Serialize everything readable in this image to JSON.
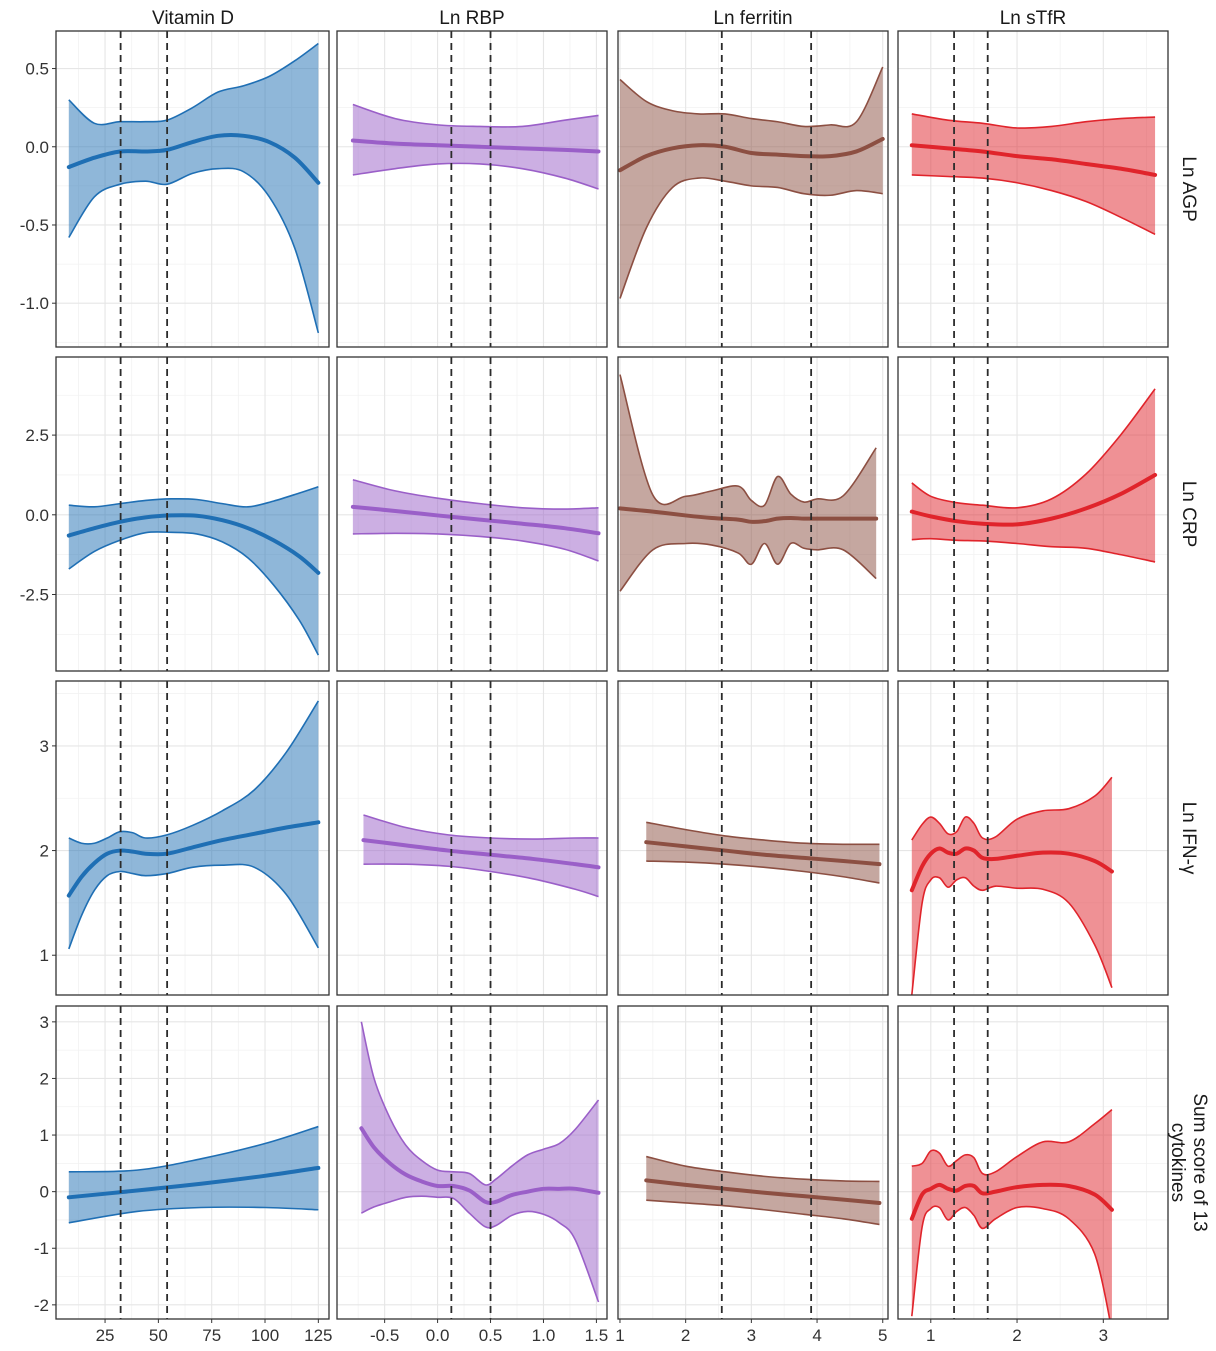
{
  "chart_data": {
    "type": "line",
    "columns": [
      {
        "strip": "Vitamin D",
        "color": "#1f6fb4",
        "xlim": [
          2,
          130
        ],
        "xticks": [
          25,
          50,
          75,
          100,
          125
        ],
        "xtick_labels": [
          "25",
          "50",
          "75",
          "100",
          "125"
        ],
        "vlines": [
          32.3,
          54.1
        ]
      },
      {
        "strip": "Ln RBP",
        "color": "#9a5fc8",
        "xlim": [
          -0.95,
          1.6
        ],
        "xticks": [
          -0.5,
          0.0,
          0.5,
          1.0,
          1.5
        ],
        "xtick_labels": [
          "-0.5",
          "0.0",
          "0.5",
          "1.0",
          "1.5"
        ],
        "vlines": [
          0.13,
          0.5
        ]
      },
      {
        "strip": "Ln ferritin",
        "color": "#8c4f42",
        "xlim": [
          0.97,
          5.08
        ],
        "xticks": [
          1,
          2,
          3,
          4,
          5
        ],
        "xtick_labels": [
          "1",
          "2",
          "3",
          "4",
          "5"
        ],
        "vlines": [
          2.55,
          3.91
        ]
      },
      {
        "strip": "Ln sTfR",
        "color": "#e0242b",
        "xlim": [
          0.62,
          3.75
        ],
        "xticks": [
          1,
          2,
          3
        ],
        "xtick_labels": [
          "1",
          "2",
          "3"
        ],
        "vlines": [
          1.27,
          1.66
        ]
      }
    ],
    "rows": [
      {
        "strip": [
          "Ln AGP"
        ],
        "ylim": [
          -1.28,
          0.74
        ],
        "yticks": [
          -1.0,
          -0.5,
          0.0,
          0.5
        ],
        "ytick_labels": [
          "-1.0",
          "-0.5",
          "0.0",
          "0.5"
        ],
        "panels": [
          {
            "x": [
              8,
              20,
              32,
              44,
              54,
              66,
              78,
              90,
              102,
              114,
              125
            ],
            "y": [
              -0.13,
              -0.07,
              -0.03,
              -0.03,
              -0.02,
              0.03,
              0.07,
              0.07,
              0.03,
              -0.07,
              -0.23
            ],
            "lo": [
              -0.58,
              -0.32,
              -0.24,
              -0.22,
              -0.24,
              -0.17,
              -0.14,
              -0.16,
              -0.32,
              -0.65,
              -1.19
            ],
            "hi": [
              0.3,
              0.15,
              0.16,
              0.16,
              0.17,
              0.25,
              0.35,
              0.39,
              0.45,
              0.55,
              0.66
            ]
          },
          {
            "x": [
              -0.8,
              -0.4,
              0.0,
              0.4,
              0.8,
              1.2,
              1.52
            ],
            "y": [
              0.04,
              0.02,
              0.01,
              0.0,
              -0.01,
              -0.02,
              -0.03
            ],
            "lo": [
              -0.18,
              -0.14,
              -0.11,
              -0.11,
              -0.14,
              -0.2,
              -0.27
            ],
            "hi": [
              0.27,
              0.18,
              0.14,
              0.13,
              0.13,
              0.17,
              0.2
            ],
            "ci_first": true
          },
          {
            "x": [
              1.0,
              1.4,
              1.8,
              2.2,
              2.6,
              3.0,
              3.4,
              3.8,
              4.2,
              4.6,
              5.0
            ],
            "y": [
              -0.15,
              -0.06,
              -0.01,
              0.01,
              0.0,
              -0.04,
              -0.05,
              -0.06,
              -0.06,
              -0.03,
              0.05
            ],
            "lo": [
              -0.97,
              -0.52,
              -0.26,
              -0.2,
              -0.22,
              -0.25,
              -0.26,
              -0.3,
              -0.31,
              -0.28,
              -0.3
            ],
            "hi": [
              0.43,
              0.29,
              0.23,
              0.21,
              0.21,
              0.18,
              0.16,
              0.13,
              0.14,
              0.16,
              0.51
            ]
          },
          {
            "x": [
              0.78,
              1.2,
              1.6,
              2.0,
              2.4,
              2.8,
              3.2,
              3.6
            ],
            "y": [
              0.01,
              -0.01,
              -0.03,
              -0.06,
              -0.08,
              -0.11,
              -0.14,
              -0.18
            ],
            "lo": [
              -0.18,
              -0.19,
              -0.2,
              -0.23,
              -0.28,
              -0.35,
              -0.45,
              -0.56
            ],
            "hi": [
              0.21,
              0.17,
              0.15,
              0.12,
              0.13,
              0.16,
              0.18,
              0.19
            ],
            "ci_first": true
          }
        ]
      },
      {
        "strip": [
          "Ln CRP"
        ],
        "ylim": [
          -4.9,
          4.95
        ],
        "yticks": [
          -2.5,
          0.0,
          2.5
        ],
        "ytick_labels": [
          "-2.5",
          "0.0",
          "2.5"
        ],
        "panels": [
          {
            "x": [
              8,
              20,
              32,
              44,
              56,
              68,
              80,
              92,
              104,
              116,
              125
            ],
            "y": [
              -0.65,
              -0.42,
              -0.22,
              -0.08,
              -0.02,
              -0.03,
              -0.17,
              -0.42,
              -0.8,
              -1.3,
              -1.82
            ],
            "lo": [
              -1.7,
              -1.15,
              -0.8,
              -0.56,
              -0.55,
              -0.6,
              -0.85,
              -1.35,
              -2.2,
              -3.3,
              -4.4
            ],
            "hi": [
              0.3,
              0.25,
              0.35,
              0.45,
              0.5,
              0.48,
              0.35,
              0.25,
              0.43,
              0.68,
              0.88
            ]
          },
          {
            "x": [
              -0.8,
              -0.4,
              0.0,
              0.4,
              0.8,
              1.2,
              1.52
            ],
            "y": [
              0.25,
              0.12,
              -0.02,
              -0.15,
              -0.28,
              -0.42,
              -0.58
            ],
            "lo": [
              -0.6,
              -0.58,
              -0.6,
              -0.68,
              -0.82,
              -1.08,
              -1.45
            ],
            "hi": [
              1.1,
              0.75,
              0.52,
              0.35,
              0.22,
              0.18,
              0.22
            ],
            "ci_first": true
          },
          {
            "x": [
              1.0,
              1.5,
              2.0,
              2.4,
              2.8,
              3.0,
              3.2,
              3.4,
              3.6,
              3.8,
              4.0,
              4.4,
              4.9
            ],
            "y": [
              0.2,
              0.1,
              -0.02,
              -0.1,
              -0.15,
              -0.22,
              -0.2,
              -0.12,
              -0.1,
              -0.12,
              -0.12,
              -0.12,
              -0.12
            ],
            "lo": [
              -2.4,
              -1.1,
              -0.9,
              -0.95,
              -1.2,
              -1.55,
              -0.9,
              -1.55,
              -0.9,
              -1.05,
              -1.1,
              -1.1,
              -2.0
            ],
            "hi": [
              4.4,
              0.62,
              0.58,
              0.75,
              0.9,
              0.45,
              0.3,
              1.2,
              0.65,
              0.4,
              0.5,
              0.6,
              2.1
            ]
          },
          {
            "x": [
              0.78,
              1.0,
              1.3,
              1.6,
              2.0,
              2.4,
              2.8,
              3.2,
              3.6
            ],
            "y": [
              0.1,
              -0.05,
              -0.2,
              -0.28,
              -0.3,
              -0.12,
              0.2,
              0.65,
              1.25
            ],
            "lo": [
              -0.78,
              -0.75,
              -0.8,
              -0.82,
              -0.9,
              -1.0,
              -1.05,
              -1.25,
              -1.48
            ],
            "hi": [
              1.0,
              0.58,
              0.38,
              0.3,
              0.22,
              0.5,
              1.28,
              2.5,
              3.95
            ]
          }
        ]
      },
      {
        "strip": [
          "Ln IFN-γ"
        ],
        "ylim": [
          0.62,
          3.62
        ],
        "yticks": [
          1,
          2,
          3
        ],
        "ytick_labels": [
          "1",
          "2",
          "3"
        ],
        "panels": [
          {
            "x": [
              8,
              14,
              20,
              26,
              32,
              38,
              44,
              54,
              66,
              80,
              95,
              110,
              125
            ],
            "y": [
              1.57,
              1.75,
              1.88,
              1.97,
              2.0,
              1.99,
              1.97,
              1.97,
              2.03,
              2.1,
              2.16,
              2.22,
              2.27
            ],
            "lo": [
              1.06,
              1.38,
              1.62,
              1.76,
              1.8,
              1.78,
              1.76,
              1.78,
              1.84,
              1.86,
              1.84,
              1.58,
              1.07
            ],
            "hi": [
              2.12,
              2.07,
              2.07,
              2.12,
              2.18,
              2.17,
              2.12,
              2.15,
              2.24,
              2.38,
              2.58,
              2.94,
              3.43
            ]
          },
          {
            "x": [
              -0.7,
              -0.3,
              0.1,
              0.5,
              0.9,
              1.3,
              1.52
            ],
            "y": [
              2.1,
              2.05,
              2.0,
              1.96,
              1.92,
              1.87,
              1.84
            ],
            "lo": [
              1.87,
              1.87,
              1.85,
              1.8,
              1.73,
              1.63,
              1.56
            ],
            "hi": [
              2.34,
              2.22,
              2.15,
              2.12,
              2.11,
              2.12,
              2.12
            ],
            "ci_first": true
          },
          {
            "x": [
              1.4,
              2.0,
              2.6,
              3.2,
              3.8,
              4.4,
              4.95
            ],
            "y": [
              2.08,
              2.04,
              2.0,
              1.96,
              1.93,
              1.9,
              1.87
            ],
            "lo": [
              1.9,
              1.89,
              1.87,
              1.84,
              1.8,
              1.75,
              1.69
            ],
            "hi": [
              2.27,
              2.2,
              2.14,
              2.1,
              2.07,
              2.06,
              2.06
            ],
            "ci_first": true
          },
          {
            "x": [
              0.78,
              0.9,
              1.0,
              1.1,
              1.2,
              1.3,
              1.4,
              1.5,
              1.6,
              1.75,
              2.0,
              2.3,
              2.6,
              2.9,
              3.1
            ],
            "y": [
              1.62,
              1.85,
              1.97,
              2.02,
              1.98,
              1.97,
              2.02,
              2.0,
              1.93,
              1.92,
              1.95,
              1.98,
              1.97,
              1.9,
              1.8
            ],
            "lo": [
              0.62,
              1.5,
              1.72,
              1.74,
              1.65,
              1.72,
              1.74,
              1.66,
              1.62,
              1.66,
              1.64,
              1.63,
              1.5,
              1.1,
              0.69
            ],
            "hi": [
              2.1,
              2.25,
              2.32,
              2.26,
              2.16,
              2.18,
              2.32,
              2.26,
              2.12,
              2.13,
              2.3,
              2.38,
              2.4,
              2.52,
              2.7
            ]
          }
        ]
      },
      {
        "strip": [
          "Sum score of 13",
          "cytokines"
        ],
        "ylim": [
          -2.25,
          3.28
        ],
        "yticks": [
          -2,
          -1,
          0,
          1,
          2,
          3
        ],
        "ytick_labels": [
          "-2",
          "-1",
          "0",
          "1",
          "2",
          "3"
        ],
        "panels": [
          {
            "x": [
              8,
              40,
              70,
              100,
              125
            ],
            "y": [
              -0.1,
              0.02,
              0.14,
              0.28,
              0.42
            ],
            "lo": [
              -0.55,
              -0.35,
              -0.28,
              -0.28,
              -0.32
            ],
            "hi": [
              0.35,
              0.38,
              0.58,
              0.85,
              1.15
            ],
            "ci_first": true
          },
          {
            "x": [
              -0.72,
              -0.6,
              -0.45,
              -0.3,
              -0.15,
              0.0,
              0.15,
              0.3,
              0.45,
              0.55,
              0.7,
              0.85,
              1.0,
              1.15,
              1.3,
              1.52
            ],
            "y": [
              1.12,
              0.78,
              0.5,
              0.3,
              0.18,
              0.1,
              0.1,
              0.02,
              -0.18,
              -0.18,
              -0.06,
              0.0,
              0.05,
              0.05,
              0.05,
              -0.02
            ],
            "lo": [
              -0.38,
              -0.27,
              -0.18,
              -0.1,
              -0.08,
              -0.1,
              -0.12,
              -0.38,
              -0.62,
              -0.6,
              -0.42,
              -0.35,
              -0.4,
              -0.55,
              -0.85,
              -1.95
            ],
            "hi": [
              3.0,
              2.0,
              1.3,
              0.82,
              0.55,
              0.38,
              0.35,
              0.32,
              0.12,
              0.22,
              0.45,
              0.65,
              0.75,
              0.85,
              1.1,
              1.62
            ],
            "ci_first": true
          },
          {
            "x": [
              1.4,
              2.0,
              2.6,
              3.2,
              3.8,
              4.4,
              4.95
            ],
            "y": [
              0.2,
              0.12,
              0.05,
              -0.02,
              -0.08,
              -0.14,
              -0.2
            ],
            "lo": [
              -0.15,
              -0.2,
              -0.25,
              -0.32,
              -0.4,
              -0.48,
              -0.58
            ],
            "hi": [
              0.62,
              0.45,
              0.35,
              0.27,
              0.22,
              0.19,
              0.18
            ],
            "ci_first": true
          },
          {
            "x": [
              0.78,
              0.9,
              1.0,
              1.1,
              1.2,
              1.3,
              1.4,
              1.5,
              1.6,
              1.75,
              2.0,
              2.3,
              2.6,
              2.9,
              3.1
            ],
            "y": [
              -0.48,
              -0.05,
              0.05,
              0.12,
              0.05,
              0.02,
              0.1,
              0.1,
              -0.03,
              0.0,
              0.08,
              0.12,
              0.1,
              -0.05,
              -0.32
            ],
            "lo": [
              -2.2,
              -0.62,
              -0.3,
              -0.28,
              -0.5,
              -0.35,
              -0.28,
              -0.42,
              -0.65,
              -0.48,
              -0.28,
              -0.3,
              -0.48,
              -1.1,
              -2.45
            ],
            "hi": [
              0.45,
              0.5,
              0.72,
              0.68,
              0.45,
              0.55,
              0.65,
              0.6,
              0.32,
              0.35,
              0.62,
              0.88,
              0.88,
              1.2,
              1.45
            ]
          }
        ]
      }
    ]
  }
}
